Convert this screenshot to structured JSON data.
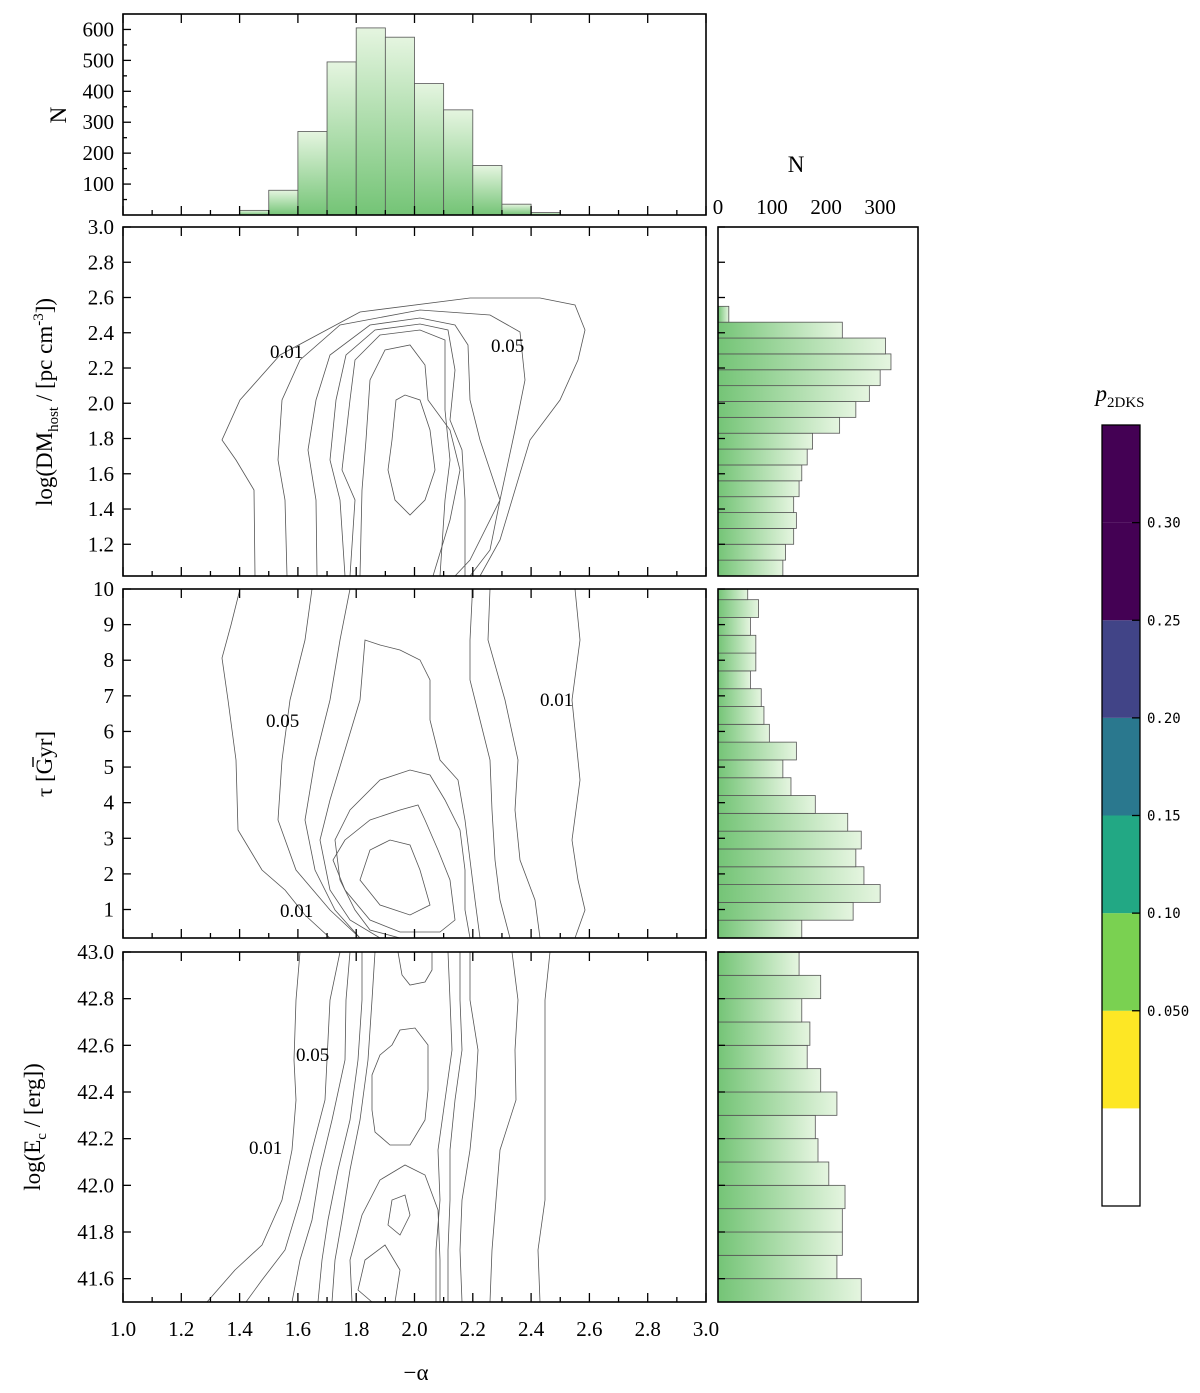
{
  "chart_data": {
    "type": "corner",
    "x_axis": {
      "label": "−α",
      "range": [
        1.0,
        3.0
      ],
      "ticks": [
        "1.0",
        "1.2",
        "1.4",
        "1.6",
        "1.8",
        "2.0",
        "2.2",
        "2.4",
        "2.6",
        "2.8",
        "3.0"
      ]
    },
    "top_histogram": {
      "ylabel": "N",
      "yticks": [
        "100",
        "200",
        "300",
        "400",
        "500",
        "600"
      ],
      "ylim": [
        0,
        650
      ],
      "bin_edges": [
        1.4,
        1.5,
        1.6,
        1.7,
        1.8,
        1.9,
        2.0,
        2.1,
        2.2,
        2.3,
        2.4,
        2.5
      ],
      "counts": [
        15,
        80,
        270,
        495,
        605,
        575,
        425,
        340,
        160,
        35,
        8
      ]
    },
    "side_histogram_axis": {
      "label": "N",
      "ticks": [
        "0",
        "100",
        "200",
        "300"
      ],
      "range": [
        0,
        370
      ]
    },
    "panels": [
      {
        "ylabel_main": "log(DM",
        "ylabel_sub": "host",
        "ylabel_mid": " / [pc cm",
        "ylabel_sup": "-3",
        "ylabel_end": "])",
        "yrange": [
          1.02,
          3.0
        ],
        "yticks": [
          "1.2",
          "1.4",
          "1.6",
          "1.8",
          "2.0",
          "2.2",
          "2.4",
          "2.6",
          "2.8",
          "3.0"
        ],
        "contour_labels": [
          "0.01",
          "0.05"
        ],
        "histogram": {
          "bin_edges": [
            1.02,
            1.11,
            1.2,
            1.29,
            1.38,
            1.47,
            1.56,
            1.65,
            1.74,
            1.83,
            1.92,
            2.01,
            2.1,
            2.19,
            2.28,
            2.37,
            2.46,
            2.55,
            2.64
          ],
          "counts": [
            120,
            125,
            140,
            145,
            140,
            150,
            155,
            165,
            175,
            225,
            255,
            280,
            300,
            320,
            310,
            230,
            20,
            0
          ]
        }
      },
      {
        "ylabel_main": "τ [Gyr]",
        "yrange": [
          0.2,
          10.0
        ],
        "yticks": [
          "1",
          "2",
          "3",
          "4",
          "5",
          "6",
          "7",
          "8",
          "9",
          "10"
        ],
        "contour_labels": [
          "0.05",
          "0.01",
          "0.01"
        ],
        "histogram": {
          "bin_edges": [
            0.2,
            0.7,
            1.2,
            1.7,
            2.2,
            2.7,
            3.2,
            3.7,
            4.2,
            4.7,
            5.2,
            5.7,
            6.2,
            6.7,
            7.2,
            7.7,
            8.2,
            8.7,
            9.2,
            9.7,
            10.0
          ],
          "counts": [
            155,
            250,
            300,
            270,
            255,
            265,
            240,
            180,
            135,
            120,
            145,
            95,
            85,
            80,
            60,
            70,
            70,
            60,
            75,
            55
          ]
        }
      },
      {
        "ylabel_main": "log(E",
        "ylabel_sub": "c",
        "ylabel_end": " / [erg])",
        "yrange": [
          41.5,
          43.0
        ],
        "yticks": [
          "41.6",
          "41.8",
          "42.0",
          "42.2",
          "42.4",
          "42.6",
          "42.8",
          "43.0"
        ],
        "contour_labels": [
          "0.05",
          "0.01"
        ],
        "histogram": {
          "bin_edges": [
            41.5,
            41.6,
            41.7,
            41.8,
            41.9,
            42.0,
            42.1,
            42.2,
            42.3,
            42.4,
            42.5,
            42.6,
            42.7,
            42.8,
            42.9,
            43.0
          ],
          "counts": [
            265,
            220,
            230,
            230,
            235,
            205,
            185,
            180,
            220,
            190,
            165,
            170,
            155,
            190,
            150
          ]
        }
      }
    ],
    "colorbar": {
      "label_main": "p",
      "label_sub": "2DKS",
      "levels": [
        0.01,
        0.05,
        0.1,
        0.15,
        0.2,
        0.25,
        0.3,
        0.35
      ],
      "tick_labels": [
        "0.050",
        "0.10",
        "0.15",
        "0.20",
        "0.25",
        "0.30"
      ],
      "colors": [
        "#ffffff",
        "#fde725",
        "#7ad151",
        "#22a884",
        "#2a788e",
        "#414487",
        "#440154",
        "#440154"
      ]
    },
    "colors": {
      "hist_dark": "#74c476",
      "hist_light": "#e5f5e0"
    }
  }
}
